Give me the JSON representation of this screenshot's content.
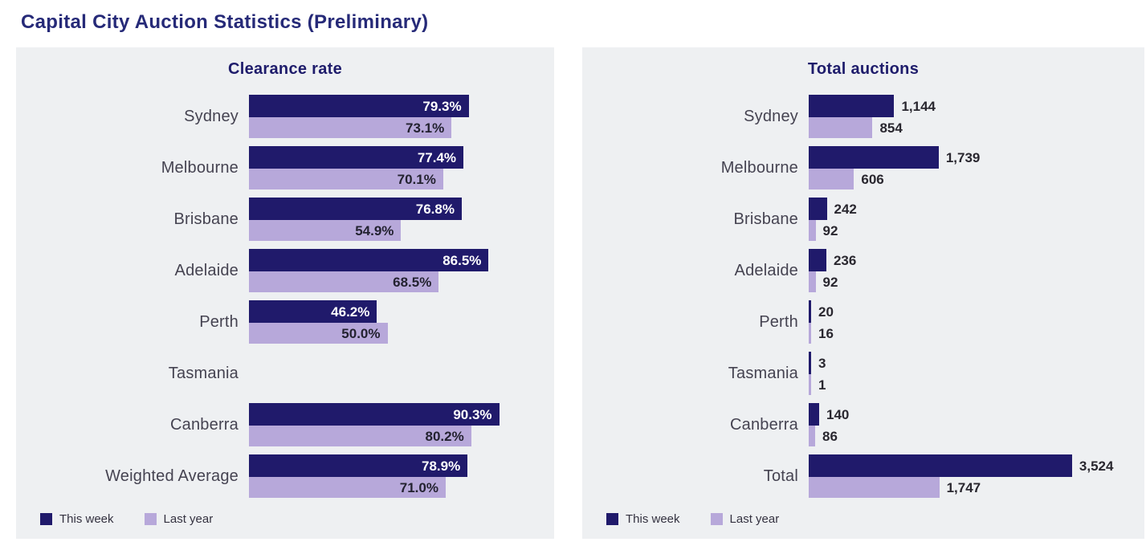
{
  "page": {
    "title": "Capital City Auction Statistics (Preliminary)"
  },
  "colors": {
    "this_week": "#201a6b",
    "last_year": "#b7a8da",
    "panel_bg": "#eef0f2",
    "heading": "#262a78"
  },
  "legend": {
    "this_week": "This week",
    "last_year": "Last year"
  },
  "chart_data": [
    {
      "type": "bar",
      "orientation": "horizontal",
      "title": "Clearance rate",
      "series_names": [
        "This week",
        "Last year"
      ],
      "xmax": 100,
      "value_suffix": "%",
      "labels_inside": true,
      "legend_position": "bottom-left",
      "grid": false,
      "rows": [
        {
          "label": "Sydney",
          "this_week": 79.3,
          "last_year": 73.1,
          "this_week_label": "79.3%",
          "last_year_label": "73.1%"
        },
        {
          "label": "Melbourne",
          "this_week": 77.4,
          "last_year": 70.1,
          "this_week_label": "77.4%",
          "last_year_label": "70.1%"
        },
        {
          "label": "Brisbane",
          "this_week": 76.8,
          "last_year": 54.9,
          "this_week_label": "76.8%",
          "last_year_label": "54.9%"
        },
        {
          "label": "Adelaide",
          "this_week": 86.5,
          "last_year": 68.5,
          "this_week_label": "86.5%",
          "last_year_label": "68.5%"
        },
        {
          "label": "Perth",
          "this_week": 46.2,
          "last_year": 50.0,
          "this_week_label": "46.2%",
          "last_year_label": "50.0%"
        },
        {
          "label": "Tasmania",
          "this_week": null,
          "last_year": null,
          "this_week_label": "",
          "last_year_label": ""
        },
        {
          "label": "Canberra",
          "this_week": 90.3,
          "last_year": 80.2,
          "this_week_label": "90.3%",
          "last_year_label": "80.2%"
        },
        {
          "label": "Weighted Average",
          "this_week": 78.9,
          "last_year": 71.0,
          "this_week_label": "78.9%",
          "last_year_label": "71.0%"
        }
      ]
    },
    {
      "type": "bar",
      "orientation": "horizontal",
      "title": "Total auctions",
      "series_names": [
        "This week",
        "Last year"
      ],
      "xmax": 3600,
      "labels_inside": false,
      "legend_position": "bottom-left",
      "grid": false,
      "rows": [
        {
          "label": "Sydney",
          "this_week": 1144,
          "last_year": 854,
          "this_week_label": "1,144",
          "last_year_label": "854"
        },
        {
          "label": "Melbourne",
          "this_week": 1739,
          "last_year": 606,
          "this_week_label": "1,739",
          "last_year_label": "606"
        },
        {
          "label": "Brisbane",
          "this_week": 242,
          "last_year": 92,
          "this_week_label": "242",
          "last_year_label": "92"
        },
        {
          "label": "Adelaide",
          "this_week": 236,
          "last_year": 92,
          "this_week_label": "236",
          "last_year_label": "92"
        },
        {
          "label": "Perth",
          "this_week": 20,
          "last_year": 16,
          "this_week_label": "20",
          "last_year_label": "16"
        },
        {
          "label": "Tasmania",
          "this_week": 3,
          "last_year": 1,
          "this_week_label": "3",
          "last_year_label": "1"
        },
        {
          "label": "Canberra",
          "this_week": 140,
          "last_year": 86,
          "this_week_label": "140",
          "last_year_label": "86"
        },
        {
          "label": "Total",
          "this_week": 3524,
          "last_year": 1747,
          "this_week_label": "3,524",
          "last_year_label": "1,747"
        }
      ]
    }
  ]
}
